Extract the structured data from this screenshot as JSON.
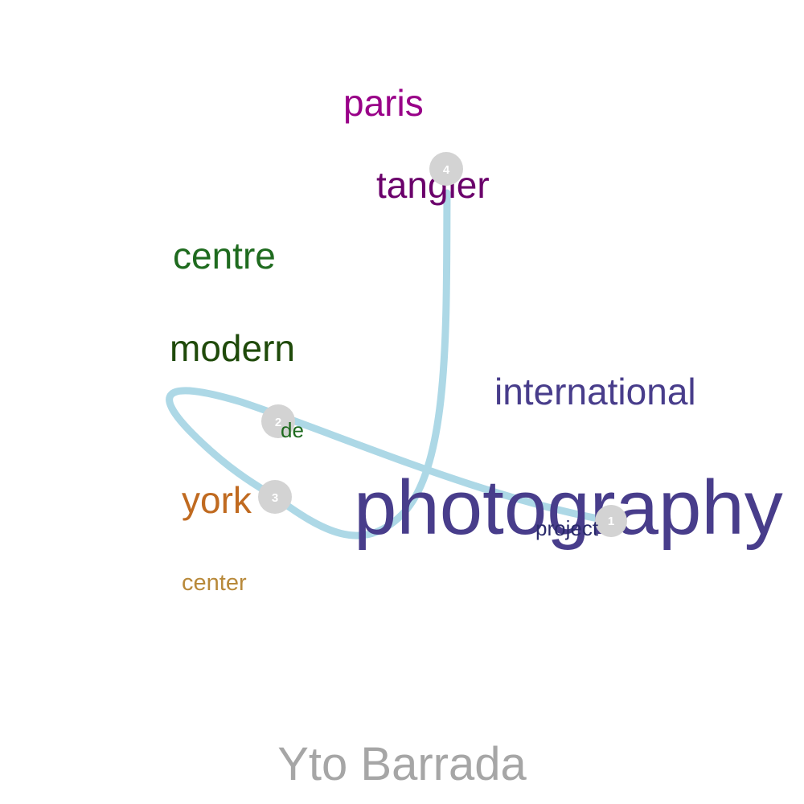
{
  "caption": {
    "text": "Yto Barrada",
    "color": "#a6a6a6"
  },
  "words": [
    {
      "id": "paris",
      "text": "paris",
      "color": "#990088"
    },
    {
      "id": "tangier",
      "text": "tangier",
      "color": "#6b006b"
    },
    {
      "id": "centre",
      "text": "centre",
      "color": "#1f6b1f"
    },
    {
      "id": "modern",
      "text": "modern",
      "color": "#1f4a0a"
    },
    {
      "id": "international",
      "text": "international",
      "color": "#483d8b"
    },
    {
      "id": "de",
      "text": "de",
      "color": "#1f6b1f"
    },
    {
      "id": "york",
      "text": "york",
      "color": "#c06a20"
    },
    {
      "id": "photography",
      "text": "photography",
      "color": "#483d8b"
    },
    {
      "id": "project",
      "text": "project",
      "color": "#2a2a6b"
    },
    {
      "id": "center",
      "text": "center",
      "color": "#b8893a"
    }
  ],
  "path": {
    "color": "#add8e6",
    "markers": [
      {
        "label": "1"
      },
      {
        "label": "2"
      },
      {
        "label": "3"
      },
      {
        "label": "4"
      }
    ],
    "marker_color": "#d3d3d3",
    "marker_text_color": "#ffffff"
  }
}
